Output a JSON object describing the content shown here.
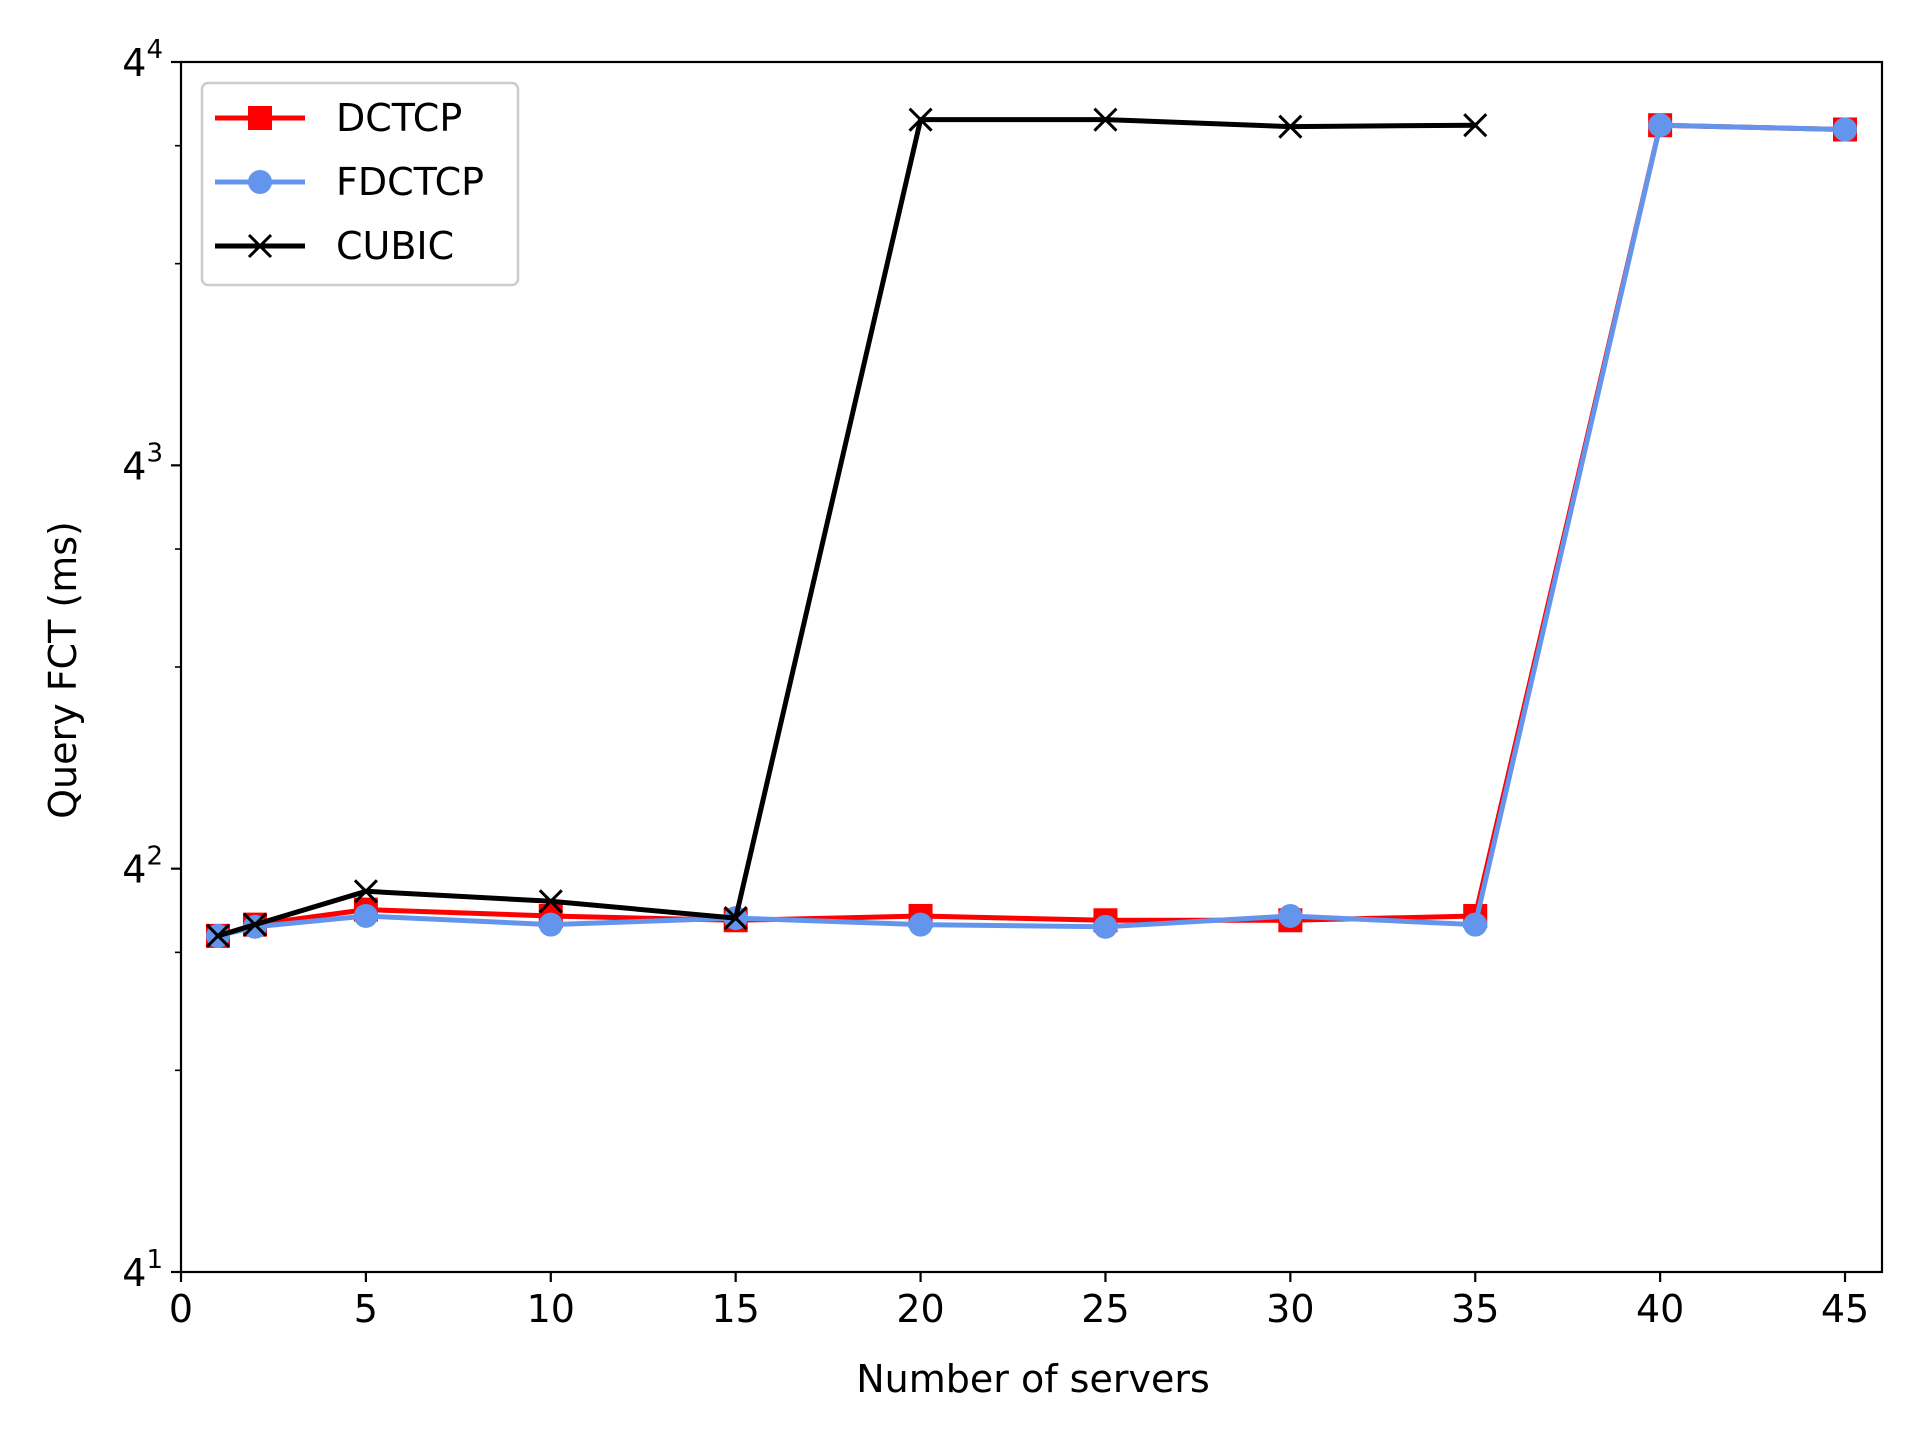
{
  "chart_data": {
    "type": "line",
    "title": "",
    "xlabel": "Number of servers",
    "ylabel": "Query FCT (ms)",
    "xlim": [
      0,
      46
    ],
    "ylim": [
      4,
      256
    ],
    "yscale": "log4",
    "grid": false,
    "legend_position": "top-left",
    "x_ticks": [
      0,
      5,
      10,
      15,
      20,
      25,
      30,
      35,
      40,
      45
    ],
    "x_tick_labels": [
      "0",
      "5",
      "10",
      "15",
      "20",
      "25",
      "30",
      "35",
      "40",
      "45"
    ],
    "y_ticks": [
      4,
      16,
      64,
      256
    ],
    "y_tick_labels": [
      {
        "base": "4",
        "exp": "1"
      },
      {
        "base": "4",
        "exp": "2"
      },
      {
        "base": "4",
        "exp": "3"
      },
      {
        "base": "4",
        "exp": "4"
      }
    ],
    "y_minor_ticks": [
      8,
      12,
      32,
      48,
      128,
      192
    ],
    "series": [
      {
        "name": "DCTCP",
        "color": "#ff0000",
        "marker": "square",
        "x": [
          1,
          2,
          5,
          10,
          15,
          20,
          25,
          30,
          35,
          40,
          45
        ],
        "y": [
          12.7,
          13.2,
          13.9,
          13.6,
          13.4,
          13.6,
          13.4,
          13.4,
          13.6,
          206,
          203
        ]
      },
      {
        "name": "FDCTCP",
        "color": "#6495ed",
        "marker": "circle",
        "x": [
          1,
          2,
          5,
          10,
          15,
          20,
          25,
          30,
          35,
          40,
          45
        ],
        "y": [
          12.7,
          13.1,
          13.6,
          13.2,
          13.5,
          13.2,
          13.1,
          13.6,
          13.2,
          206,
          203
        ]
      },
      {
        "name": "CUBIC",
        "color": "#000000",
        "marker": "x",
        "x": [
          1,
          2,
          5,
          10,
          15,
          20,
          25,
          30,
          35
        ],
        "y": [
          12.7,
          13.2,
          14.8,
          14.3,
          13.5,
          210,
          210,
          205,
          206
        ]
      }
    ]
  }
}
